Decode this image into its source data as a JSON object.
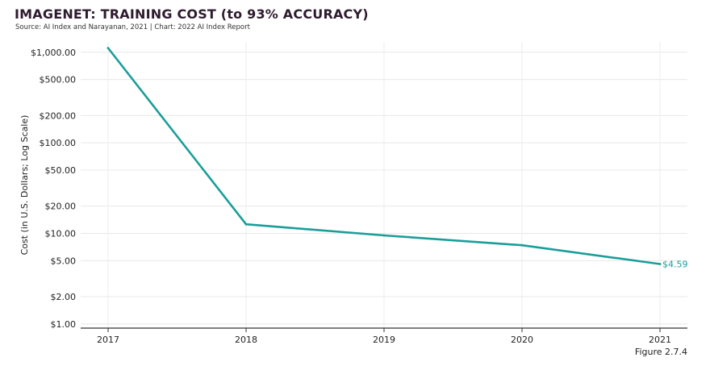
{
  "chart_data": {
    "type": "line",
    "title": "IMAGENET: TRAINING COST (to 93% ACCURACY)",
    "subtitle": "Source: AI Index and Narayanan, 2021 | Chart: 2022 AI Index Report",
    "xlabel": "",
    "ylabel": "Cost (in U.S. Dollars; Log Scale)",
    "yscale": "log",
    "ylim": [
      0.9,
      1300
    ],
    "grid": true,
    "x": [
      "2017",
      "2018",
      "2019",
      "2020",
      "2021"
    ],
    "series": [
      {
        "values": [
          1112,
          12.6,
          9.5,
          7.4,
          4.59
        ],
        "color": "#1a9e9a",
        "end_label": "$4.59"
      }
    ],
    "y_ticks": [
      {
        "value": 1000,
        "label": "$1,000.00"
      },
      {
        "value": 500,
        "label": "$500.00"
      },
      {
        "value": 200,
        "label": "$200.00"
      },
      {
        "value": 100,
        "label": "$100.00"
      },
      {
        "value": 50,
        "label": "$50.00"
      },
      {
        "value": 20,
        "label": "$20.00"
      },
      {
        "value": 10,
        "label": "$10.00"
      },
      {
        "value": 5,
        "label": "$5.00"
      },
      {
        "value": 2,
        "label": "$2.00"
      },
      {
        "value": 1,
        "label": "$1.00"
      }
    ]
  },
  "figure_label": "Figure 2.7.4"
}
